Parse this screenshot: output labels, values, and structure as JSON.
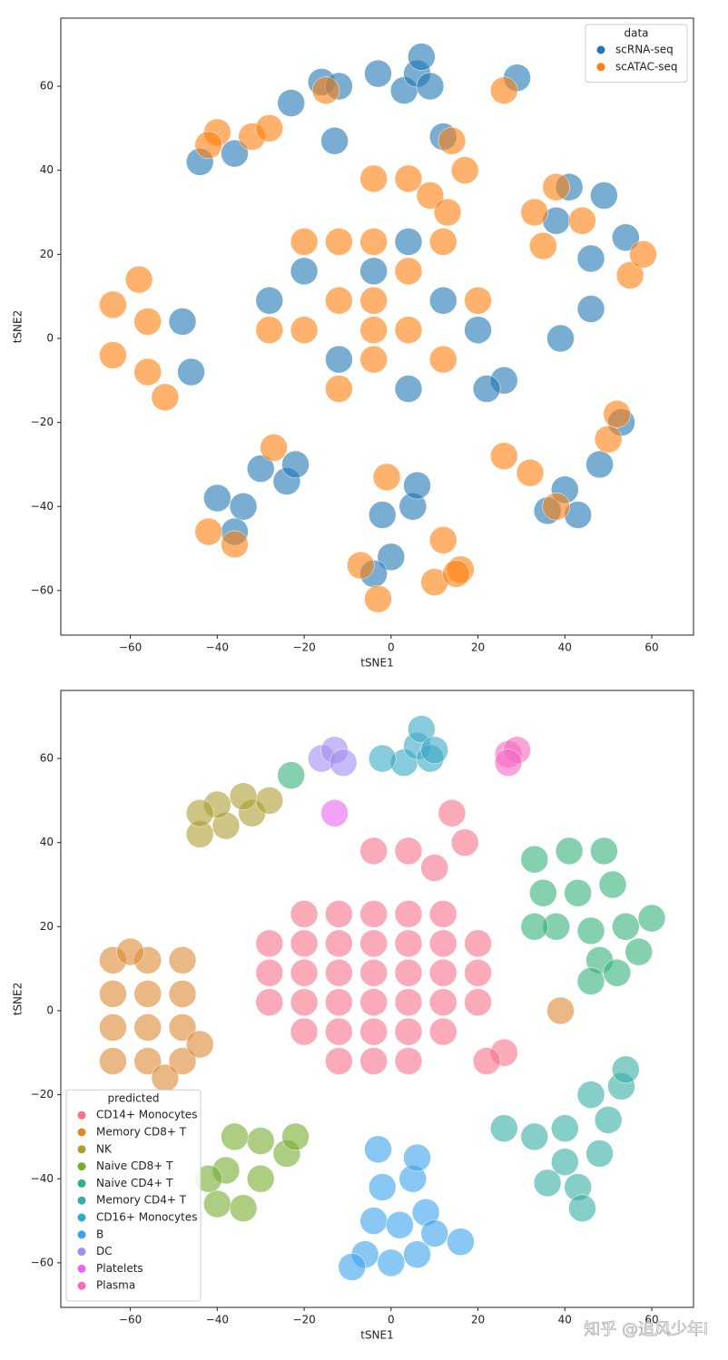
{
  "chart_data": [
    {
      "type": "scatter",
      "xlabel": "tSNE1",
      "ylabel": "tSNE2",
      "xlim": [
        -76,
        69.6
      ],
      "ylim": [
        -70.6,
        76.2
      ],
      "xticks": [
        {
          "value": -60,
          "label": "−60"
        },
        {
          "value": -40,
          "label": "−40"
        },
        {
          "value": -20,
          "label": "−20"
        },
        0,
        20,
        40,
        60
      ],
      "yticks": [
        {
          "value": -60,
          "label": "−60"
        },
        {
          "value": -40,
          "label": "−40"
        },
        {
          "value": -20,
          "label": "−20"
        },
        0,
        20,
        40,
        60
      ],
      "grid": false,
      "legend": "upper right",
      "legend_title": "data",
      "series": [
        {
          "name": "scRNA-seq",
          "color": "#1f77b4",
          "x": [
            -20,
            -12,
            4,
            12,
            -28,
            20,
            26,
            22,
            4,
            -4,
            -48,
            -46,
            -44,
            -36,
            -40,
            -34,
            -30,
            -24,
            -22,
            -36,
            41,
            49,
            46,
            54,
            38,
            43,
            36,
            48,
            53,
            40,
            3,
            6,
            7,
            9,
            -16,
            -12,
            29,
            -2,
            5,
            0,
            -4,
            6,
            -13,
            -23,
            39,
            46,
            -3,
            12
          ],
          "y": [
            16,
            -5,
            23,
            9,
            9,
            2,
            -10,
            -12,
            -12,
            16,
            4,
            -8,
            42,
            44,
            -38,
            -40,
            -31,
            -34,
            -30,
            -46,
            36,
            34,
            19,
            24,
            28,
            -42,
            -41,
            -30,
            -20,
            -36,
            59,
            63,
            67,
            60,
            61,
            60,
            62,
            -42,
            -40,
            -52,
            -56,
            -35,
            47,
            56,
            0,
            7,
            63,
            48
          ]
        },
        {
          "name": "scATAC-seq",
          "color": "#ff7f0e",
          "x": [
            -20,
            -12,
            -12,
            -4,
            -4,
            -4,
            4,
            4,
            12,
            12,
            -28,
            20,
            -20,
            -12,
            -4,
            -64,
            -56,
            -56,
            -64,
            -52,
            -58,
            -40,
            -32,
            -28,
            -42,
            -42,
            -36,
            -27,
            33,
            38,
            55,
            58,
            35,
            44,
            26,
            32,
            50,
            52,
            38,
            -7,
            12,
            10,
            -3,
            16,
            14,
            4,
            -4,
            9,
            13,
            17,
            -15,
            26,
            -1,
            15
          ],
          "y": [
            2,
            9,
            23,
            2,
            9,
            -5,
            2,
            16,
            -5,
            23,
            2,
            9,
            23,
            -12,
            23,
            -4,
            4,
            -8,
            8,
            -14,
            14,
            49,
            48,
            50,
            46,
            -46,
            -49,
            -26,
            30,
            36,
            15,
            20,
            22,
            28,
            -28,
            -32,
            -24,
            -18,
            -40,
            -54,
            -48,
            -58,
            -62,
            -55,
            47,
            38,
            38,
            34,
            30,
            40,
            59,
            59,
            -33,
            -56
          ]
        }
      ]
    },
    {
      "type": "scatter",
      "xlabel": "tSNE1",
      "ylabel": "tSNE2",
      "xlim": [
        -76,
        69.6
      ],
      "ylim": [
        -70.6,
        76.2
      ],
      "xticks": [
        {
          "value": -60,
          "label": "−60"
        },
        {
          "value": -40,
          "label": "−40"
        },
        {
          "value": -20,
          "label": "−20"
        },
        0,
        20,
        40,
        60
      ],
      "yticks": [
        {
          "value": -60,
          "label": "−60"
        },
        {
          "value": -40,
          "label": "−40"
        },
        {
          "value": -20,
          "label": "−20"
        },
        0,
        20,
        40,
        60
      ],
      "grid": false,
      "legend": "lower left",
      "legend_title": "predicted",
      "series": [
        {
          "name": "CD14+ Monocytes",
          "color": "#f77189",
          "x": [
            -28,
            -28,
            -28,
            -20,
            -20,
            -20,
            -20,
            -20,
            -12,
            -12,
            -12,
            -12,
            -12,
            -12,
            -4,
            -4,
            -4,
            -4,
            -4,
            -4,
            4,
            4,
            4,
            4,
            4,
            4,
            12,
            12,
            12,
            12,
            12,
            20,
            20,
            20,
            26,
            22,
            14,
            4,
            -4,
            10,
            17
          ],
          "y": [
            2,
            9,
            16,
            -5,
            2,
            9,
            16,
            23,
            -12,
            -5,
            2,
            9,
            16,
            23,
            -12,
            -5,
            2,
            9,
            16,
            23,
            -12,
            -5,
            2,
            9,
            16,
            23,
            -5,
            2,
            9,
            16,
            23,
            2,
            9,
            16,
            -10,
            -12,
            47,
            38,
            38,
            34,
            40
          ]
        },
        {
          "name": "Memory CD8+ T",
          "color": "#dc8932",
          "x": [
            -64,
            -64,
            -64,
            -64,
            -56,
            -56,
            -56,
            -56,
            -48,
            -48,
            -48,
            -48,
            -44,
            -60,
            -52,
            39
          ],
          "y": [
            -12,
            -4,
            4,
            12,
            -12,
            -4,
            4,
            12,
            -12,
            -4,
            4,
            12,
            -8,
            14,
            -16,
            0
          ]
        },
        {
          "name": "NK",
          "color": "#ae9d31",
          "x": [
            -44,
            -38,
            -32,
            -28,
            -40,
            -34,
            -44
          ],
          "y": [
            42,
            44,
            47,
            50,
            49,
            51,
            47
          ]
        },
        {
          "name": "Naive CD8+ T",
          "color": "#77ab31",
          "x": [
            -40,
            -34,
            -38,
            -30,
            -24,
            -30,
            -22,
            -36,
            -42
          ],
          "y": [
            -46,
            -47,
            -38,
            -40,
            -34,
            -31,
            -30,
            -30,
            -40
          ]
        },
        {
          "name": "Naive CD4+ T",
          "color": "#33b07a",
          "x": [
            33,
            41,
            49,
            35,
            43,
            51,
            38,
            46,
            54,
            57,
            48,
            60,
            33,
            46,
            52,
            -23
          ],
          "y": [
            36,
            38,
            38,
            28,
            28,
            30,
            20,
            19,
            20,
            14,
            12,
            22,
            20,
            7,
            9,
            56
          ]
        },
        {
          "name": "Memory CD4+ T",
          "color": "#36ada4",
          "x": [
            26,
            33,
            40,
            36,
            43,
            48,
            50,
            53,
            46,
            40,
            54,
            44
          ],
          "y": [
            -28,
            -30,
            -36,
            -41,
            -42,
            -34,
            -26,
            -18,
            -20,
            -28,
            -14,
            -47
          ]
        },
        {
          "name": "CD16+ Monocytes",
          "color": "#38a9c5",
          "x": [
            3,
            6,
            7,
            9,
            -2,
            10
          ],
          "y": [
            59,
            63,
            67,
            60,
            60,
            62
          ]
        },
        {
          "name": "B",
          "color": "#3ba3ec",
          "x": [
            -6,
            0,
            6,
            -4,
            2,
            8,
            -2,
            5,
            10,
            -3,
            6,
            16,
            -9
          ],
          "y": [
            -58,
            -60,
            -58,
            -50,
            -51,
            -48,
            -42,
            -40,
            -53,
            -33,
            -35,
            -55,
            -61
          ]
        },
        {
          "name": "DC",
          "color": "#a48cf4",
          "x": [
            -16,
            -13,
            -11
          ],
          "y": [
            60,
            62,
            59
          ]
        },
        {
          "name": "Platelets",
          "color": "#e866f4",
          "x": [
            -13
          ],
          "y": [
            47
          ]
        },
        {
          "name": "Plasma",
          "color": "#f668c2",
          "x": [
            27,
            29,
            27
          ],
          "y": [
            61,
            62,
            59
          ]
        }
      ]
    }
  ],
  "watermark": "知乎 @追风少年i"
}
